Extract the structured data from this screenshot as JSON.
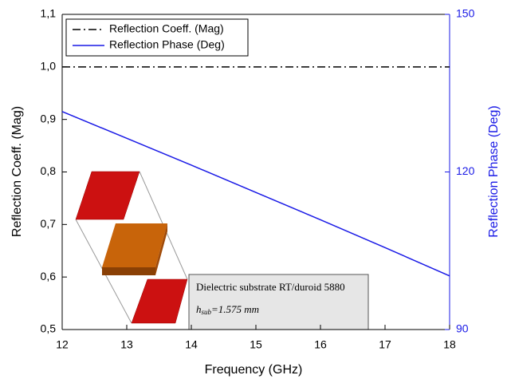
{
  "chart_data": {
    "type": "line",
    "x_label": "Frequency (GHz)",
    "y_label": "Reflection Coeff. (Mag)",
    "y2_label": "Reflection Phase (Deg)",
    "x": [
      12,
      13,
      14,
      15,
      16,
      17,
      18
    ],
    "series": [
      {
        "name": "Reflection Coeff. (Mag)",
        "color": "#000000",
        "dash": "dash-dot",
        "values": [
          1,
          1,
          1,
          1,
          1,
          1,
          1
        ]
      },
      {
        "name": "Reflection Phase (Deg)",
        "color": "#1a1ae6",
        "axis": "y2",
        "values": [
          131.5,
          126.4,
          121.3,
          116.1,
          110.9,
          105.6,
          100.2
        ]
      }
    ],
    "xlim": [
      12,
      18
    ],
    "xticks": [
      12,
      13,
      14,
      15,
      16,
      17,
      18
    ],
    "ylim": [
      0.5,
      1.1
    ],
    "yticks": [
      {
        "value": 0.5,
        "label": "0,5"
      },
      {
        "value": 0.6,
        "label": "0,6"
      },
      {
        "value": 0.7,
        "label": "0,7"
      },
      {
        "value": 0.8,
        "label": "0,8"
      },
      {
        "value": 0.9,
        "label": "0,9"
      },
      {
        "value": 1.0,
        "label": "1,0"
      },
      {
        "value": 1.1,
        "label": "1,1"
      }
    ],
    "y2lim": [
      90,
      150
    ],
    "y2ticks": [
      90,
      120,
      150
    ],
    "y2_color": "#1a1ae6",
    "legend": "upper left",
    "annotation": {
      "line1": "Dielectric substrate RT/duroid 5880",
      "h": "h",
      "sub": "sub",
      "rest": "=1.575 mm"
    }
  }
}
